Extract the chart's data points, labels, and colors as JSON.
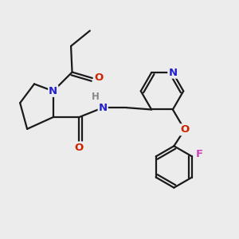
{
  "bg_color": "#ececec",
  "bond_color": "#1a1a1a",
  "N_color": "#2222cc",
  "O_color": "#cc2200",
  "F_color": "#cc44bb",
  "H_color": "#888888",
  "line_width": 1.6,
  "fig_width": 3.0,
  "fig_height": 3.0,
  "dpi": 100,
  "xlim": [
    0,
    10
  ],
  "ylim": [
    0,
    10
  ]
}
